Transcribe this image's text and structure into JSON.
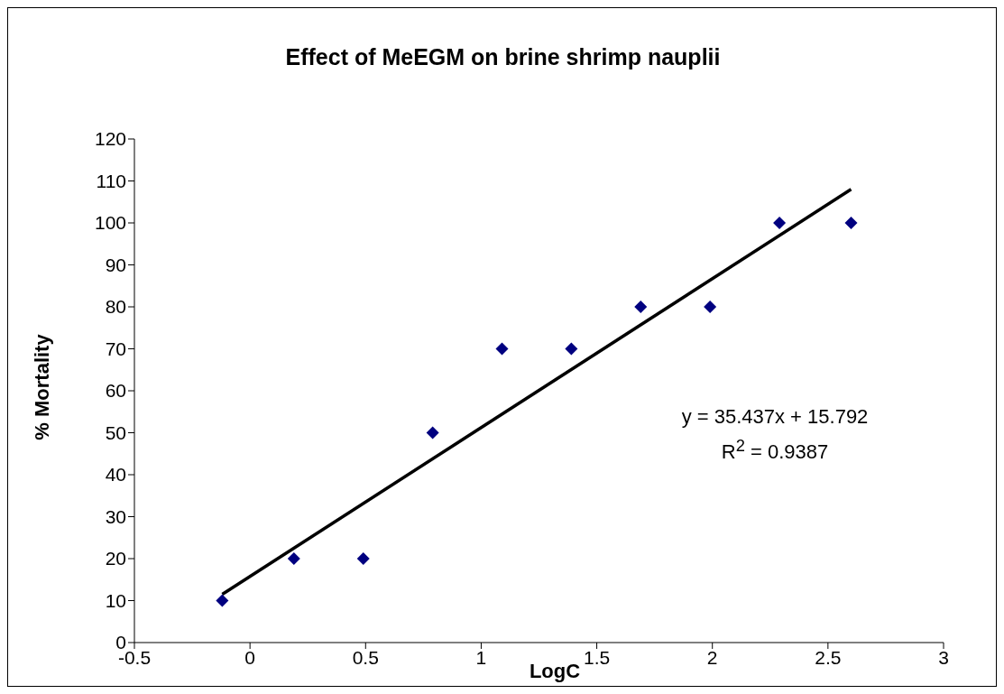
{
  "chart_data": {
    "type": "scatter",
    "title": "Effect of MeEGM on brine shrimp nauplii",
    "xlabel": "LogC",
    "ylabel": "% Mortality",
    "xlim": [
      -0.5,
      3
    ],
    "xticks": [
      -0.5,
      0,
      0.5,
      1,
      1.5,
      2,
      2.5,
      3
    ],
    "ylim": [
      0,
      120
    ],
    "yticks": [
      0,
      10,
      20,
      30,
      40,
      50,
      60,
      70,
      80,
      90,
      100,
      110,
      120
    ],
    "grid": false,
    "marker": "diamond",
    "series": [
      {
        "color": "#000080",
        "x": [
          -0.12,
          0.19,
          0.49,
          0.79,
          1.09,
          1.39,
          1.69,
          1.99,
          2.29,
          2.6
        ],
        "values": [
          10,
          20,
          20,
          50,
          70,
          70,
          80,
          80,
          100,
          100
        ]
      },
      {
        "type": "line",
        "color": "#000000",
        "marker": "none",
        "line_style": "solid",
        "x": [
          -0.12,
          2.6
        ],
        "values": [
          11.5,
          108
        ]
      }
    ],
    "annotations": [
      "y = 35.437x + 15.792",
      "R$^{2}$ = 0.9387"
    ]
  }
}
